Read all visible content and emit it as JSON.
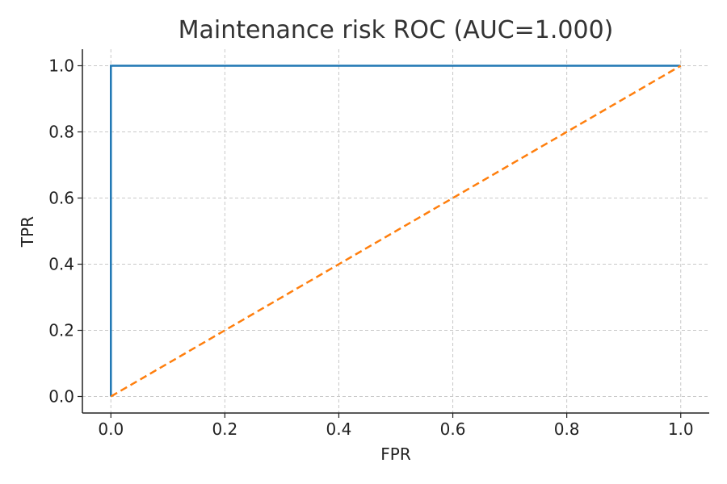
{
  "chart_data": {
    "type": "line",
    "title": "Maintenance risk ROC (AUC=1.000)",
    "xlabel": "FPR",
    "ylabel": "TPR",
    "xlim": [
      -0.05,
      1.05
    ],
    "ylim": [
      -0.05,
      1.05
    ],
    "xticks": [
      "0.0",
      "0.2",
      "0.4",
      "0.6",
      "0.8",
      "1.0"
    ],
    "yticks": [
      "0.0",
      "0.2",
      "0.4",
      "0.6",
      "0.8",
      "1.0"
    ],
    "grid": true,
    "series": [
      {
        "color": "#1f77b4",
        "style": "solid",
        "x": [
          0.0,
          0.0,
          1.0
        ],
        "y": [
          0.0,
          1.0,
          1.0
        ]
      },
      {
        "color": "#ff7f0e",
        "style": "dashed",
        "x": [
          0.0,
          1.0
        ],
        "y": [
          0.0,
          1.0
        ]
      }
    ]
  }
}
